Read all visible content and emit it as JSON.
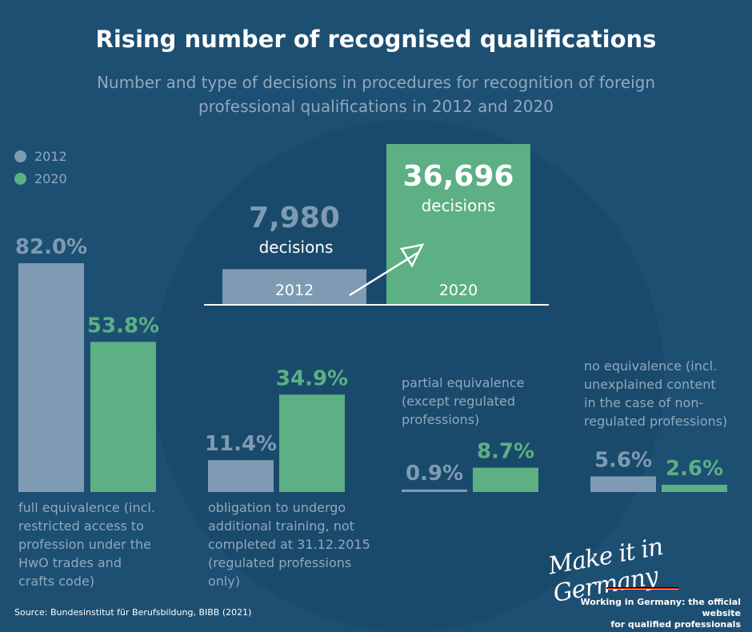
{
  "colors": {
    "c2012": "#7e9bb3",
    "c2020": "#5cb084",
    "text_dim": "#8fa9bf",
    "background": "#1d4f72"
  },
  "header": {
    "title": "Rising number of recognised qualifications",
    "subtitle_line1": "Number and type of decisions in procedures for recognition of foreign",
    "subtitle_line2": "professional qualifications in 2012 and 2020"
  },
  "legend": [
    {
      "label": "2012"
    },
    {
      "label": "2020"
    }
  ],
  "footer": {
    "source": "Source: Bundesinstitut für Berufsbildung, BIBB (2021)",
    "logo_text": "Make it in Germany",
    "tagline_line1": "Working in Germany: the official website",
    "tagline_line2": "for qualified professionals"
  },
  "chart_data": [
    {
      "type": "bar",
      "categories": [
        "2012",
        "2020"
      ],
      "values": [
        7980,
        36696
      ],
      "value_labels": [
        "7,980",
        "36,696"
      ],
      "unit_label": "decisions"
    },
    {
      "type": "bar",
      "categories": [
        "full equivalence (incl. restricted access to profession under the HwO trades and crafts code)",
        "obligation to undergo additional training, not completed at 31.12.2015 (regulated professions only)",
        "partial equivalence (except regulated professions)",
        "no equivalence (incl. unexplained content in the case of non-regulated professions)"
      ],
      "category_lines": [
        [
          "full equivalence (incl.",
          "restricted access to",
          "profession under the",
          "HwO trades and",
          "crafts code)"
        ],
        [
          "obligation to undergo",
          "additional training, not",
          "completed at 31.12.2015",
          "(regulated professions",
          "only)"
        ],
        [
          "partial equivalence",
          "(except regulated",
          "professions)"
        ],
        [
          "no equivalence (incl.",
          "unexplained content",
          "in the case of non-",
          "regulated professions)"
        ]
      ],
      "series": [
        {
          "name": "2012",
          "values": [
            82.0,
            11.4,
            0.9,
            5.6
          ],
          "labels": [
            "82.0%",
            "11.4%",
            "0.9%",
            "5.6%"
          ]
        },
        {
          "name": "2020",
          "values": [
            53.8,
            34.9,
            8.7,
            2.6
          ],
          "labels": [
            "53.8%",
            "34.9%",
            "8.7%",
            "2.6%"
          ]
        }
      ],
      "unit": "%"
    }
  ]
}
